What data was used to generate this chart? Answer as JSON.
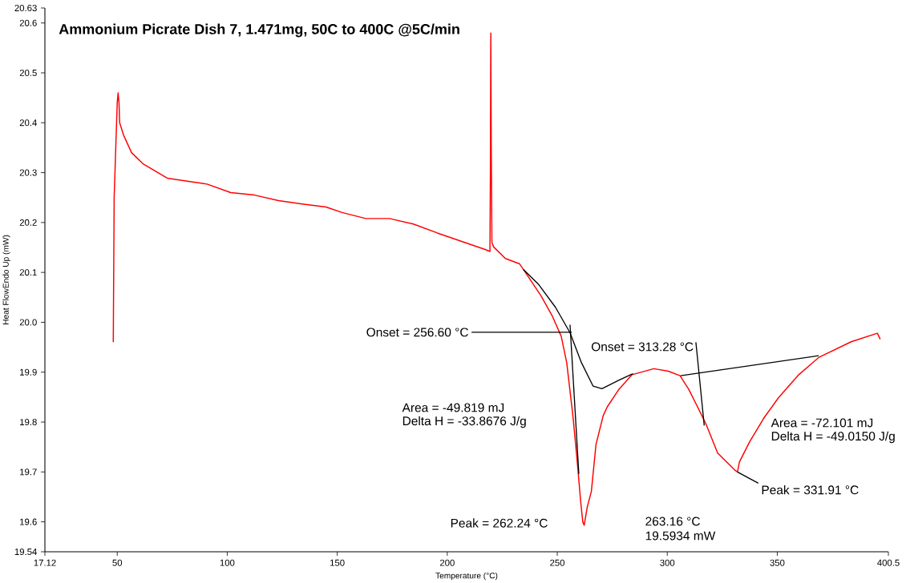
{
  "chart_data": {
    "type": "line",
    "title": "Ammonium Picrate Dish 7, 1.471mg, 50C to 400C @5C/min",
    "xlabel": "Temperature (°C)",
    "ylabel": "Heat FlowEndo Up (mW)",
    "xlim": [
      17.12,
      400.5
    ],
    "ylim": [
      19.54,
      20.63
    ],
    "xticks": [
      17.12,
      50,
      100,
      150,
      200,
      250,
      300,
      350,
      400.5
    ],
    "yticks": [
      19.54,
      19.6,
      19.7,
      19.8,
      19.9,
      {
        "value": 20,
        "label": "20.0"
      },
      20.1,
      20.2,
      20.3,
      20.4,
      20.5,
      20.6,
      20.63
    ],
    "marker": "none",
    "line_style": "solid",
    "series": [
      {
        "color": "#ff0000",
        "x": [
          48.2,
          48.6,
          49.4,
          50.0,
          50.4,
          50.8,
          51.1,
          52.9,
          56.5,
          61.9,
          72.7,
          80.0,
          90.8,
          101.6,
          112.4,
          123.3,
          134.1,
          144.9,
          152.2,
          163.0,
          173.8,
          184.6,
          195.5,
          217.2,
          219.4,
          219.6,
          219.8,
          220.0,
          220.3,
          221.1,
          226.4,
          232.9,
          234.6,
          242.5,
          247.8,
          251.8,
          254.3,
          257.1,
          259.0,
          260.7,
          261.6,
          262.24,
          263.6,
          265.5,
          267.6,
          270.9,
          272.8,
          278.1,
          284.0,
          293.9,
          300.5,
          305.8,
          309.7,
          313.7,
          317.6,
          322.9,
          330.9,
          331.91,
          332.8,
          337.4,
          343.9,
          350.6,
          359.8,
          369.0,
          383.6,
          395.5,
          396.8
        ],
        "values": [
          19.96,
          20.25,
          20.36,
          20.44,
          20.46,
          20.44,
          20.4,
          20.375,
          20.34,
          20.317,
          20.289,
          20.284,
          20.277,
          20.26,
          20.255,
          20.244,
          20.237,
          20.231,
          20.22,
          20.208,
          20.208,
          20.197,
          20.179,
          20.146,
          20.142,
          20.3,
          20.58,
          20.35,
          20.16,
          20.151,
          20.128,
          20.117,
          20.106,
          20.054,
          20.012,
          19.972,
          19.919,
          19.813,
          19.725,
          19.638,
          19.6,
          19.593,
          19.629,
          19.661,
          19.755,
          19.813,
          19.831,
          19.866,
          19.895,
          19.907,
          19.902,
          19.893,
          19.866,
          19.831,
          19.796,
          19.738,
          19.703,
          19.7,
          19.72,
          19.76,
          19.808,
          19.849,
          19.895,
          19.93,
          19.961,
          19.978,
          19.966
        ]
      },
      {
        "color": "#000000",
        "x": [
          234.6,
          241.3,
          249.2,
          255.8,
          261.0,
          266.3,
          270.3,
          278.1,
          284.4
        ],
        "values": [
          20.106,
          20.077,
          20.03,
          19.979,
          19.919,
          19.872,
          19.867,
          19.884,
          19.897
        ]
      },
      {
        "color": "#000000",
        "x": [
          306.1,
          368.8
        ],
        "values": [
          19.893,
          19.933
        ]
      },
      {
        "color": "#000000",
        "x": [
          255.8,
          259.8
        ],
        "values": [
          19.995,
          19.696
        ]
      },
      {
        "color": "#000000",
        "x": [
          313.0,
          313.7,
          316.8
        ],
        "values": [
          19.96,
          19.93,
          19.793
        ]
      }
    ],
    "annotations": [
      {
        "text": "Onset = 256.60 °C",
        "x": 256.6,
        "y": 19.98
      },
      {
        "text": "Onset = 313.28 °C",
        "x": 313.28,
        "y": 19.93
      },
      "Area = -49.819 mJ",
      "Delta H = -33.8676 J/g",
      "Peak = 262.24 °C",
      "263.16 °C",
      "19.5934 mW",
      "Area = -72.101 mJ",
      "Delta H = -49.0150 J/g",
      {
        "text": "Peak = 331.91 °C",
        "x": 331.91,
        "y": 19.7
      }
    ]
  }
}
